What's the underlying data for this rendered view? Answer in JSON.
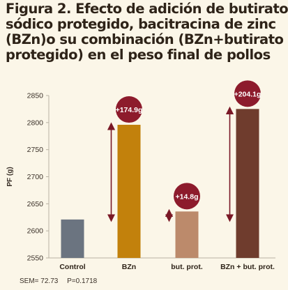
{
  "title_lines": [
    "Figura 2. Efecto de adición de butirato",
    "sódico protegido, bacitracina de zinc",
    "(BZn)o su combinación (BZn+butirato",
    "protegido) en el peso final de pollos"
  ],
  "footer": {
    "sem": "SEM= 72.73",
    "p": "P=0.1718"
  },
  "chart_data": {
    "type": "bar",
    "categories": [
      "Control",
      "BZn",
      "but. prot.",
      "BZn + but. prot."
    ],
    "values": [
      2621,
      2795.9,
      2635.8,
      2825.1
    ],
    "colors": [
      "#6b7480",
      "#c2810c",
      "#bc8a6b",
      "#6f3c2d"
    ],
    "ylabel": "PF (g)",
    "ylim": [
      2550,
      2850
    ],
    "yticks": [
      2550,
      2600,
      2650,
      2700,
      2750,
      2800,
      2850
    ],
    "annotations": [
      "",
      "+174.9g",
      "+14.8g",
      "+204.1g"
    ],
    "badge_color": "#8d1b2c",
    "arrow_color": "#7a1826"
  }
}
